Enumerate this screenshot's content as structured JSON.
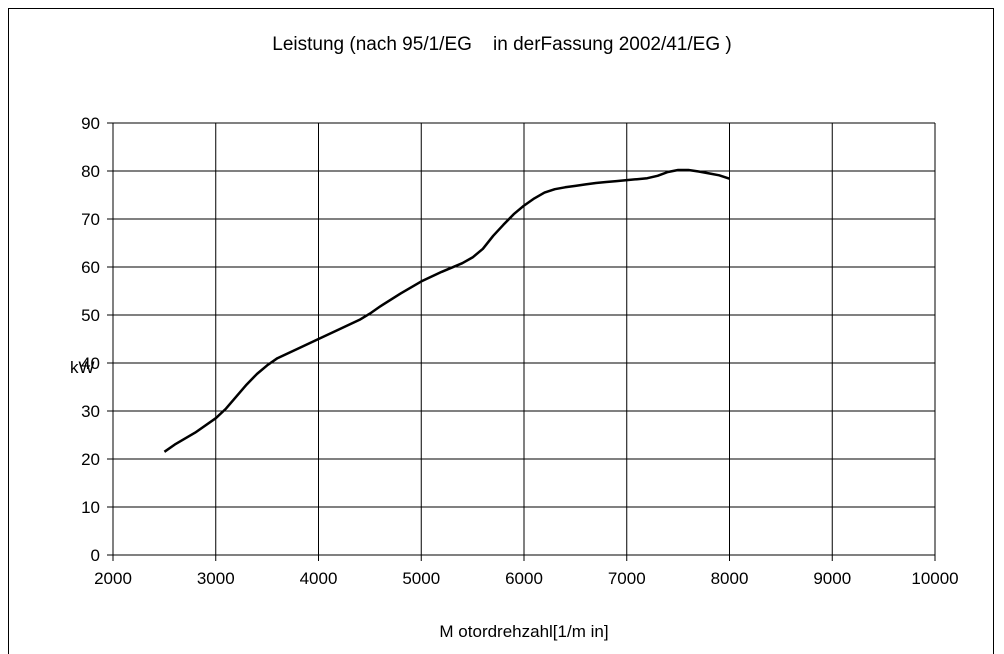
{
  "chart_data": {
    "type": "line",
    "title": "Leistung (nach 95/1/EG    in derFassung 2002/41/EG )",
    "xlabel": "M otordrehzahl[1/m in]",
    "ylabel": "kW",
    "xlim": [
      2000,
      10000
    ],
    "ylim": [
      0,
      90
    ],
    "xticks": [
      2000,
      3000,
      4000,
      5000,
      6000,
      7000,
      8000,
      9000,
      10000
    ],
    "yticks": [
      0,
      10,
      20,
      30,
      40,
      50,
      60,
      70,
      80,
      90
    ],
    "grid": true,
    "series": [
      {
        "color": "#000000",
        "x": [
          2500,
          2600,
          2800,
          3000,
          3100,
          3200,
          3300,
          3400,
          3500,
          3600,
          3800,
          4000,
          4200,
          4400,
          4500,
          4600,
          4800,
          5000,
          5200,
          5400,
          5500,
          5600,
          5700,
          5800,
          5900,
          6000,
          6100,
          6200,
          6300,
          6400,
          6500,
          6600,
          6700,
          6800,
          6900,
          7000,
          7100,
          7200,
          7300,
          7400,
          7500,
          7600,
          7700,
          7800,
          7900,
          8000
        ],
        "y": [
          21.5,
          23,
          25.5,
          28.5,
          30.5,
          33,
          35.5,
          37.7,
          39.5,
          41,
          43,
          45,
          47,
          49,
          50.3,
          51.8,
          54.5,
          57,
          59,
          60.8,
          62,
          63.8,
          66.5,
          68.8,
          71,
          72.8,
          74.3,
          75.5,
          76.2,
          76.6,
          76.9,
          77.2,
          77.5,
          77.7,
          77.9,
          78.1,
          78.3,
          78.5,
          79,
          79.8,
          80.2,
          80.2,
          79.9,
          79.5,
          79.1,
          78.4
        ]
      }
    ]
  }
}
